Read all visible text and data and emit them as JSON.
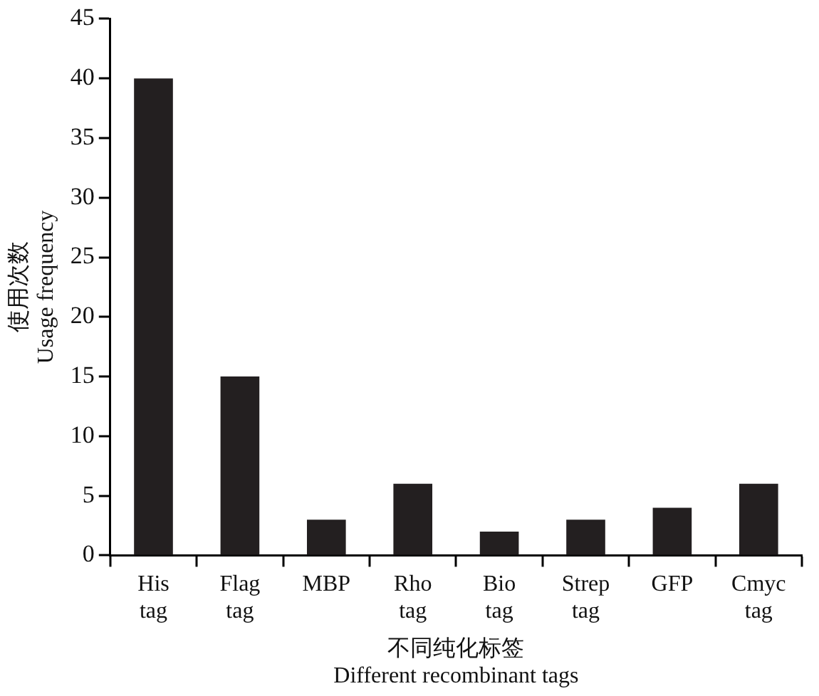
{
  "chart_data": {
    "type": "bar",
    "categories": [
      "His tag",
      "Flag tag",
      "MBP",
      "Rho tag",
      "Bio tag",
      "Strep tag",
      "GFP",
      "Cmyc tag"
    ],
    "values": [
      40,
      15,
      3,
      6,
      2,
      3,
      4,
      6
    ],
    "color": "#231f20",
    "xlabel": "不同纯化标签\nDifferent recombinant tags",
    "ylabel": "使用次数\nUsage frequency",
    "ylim": [
      0,
      45
    ],
    "yticks": [
      0,
      5,
      10,
      15,
      20,
      25,
      30,
      35,
      40,
      45
    ],
    "grid": false,
    "legend": false
  }
}
